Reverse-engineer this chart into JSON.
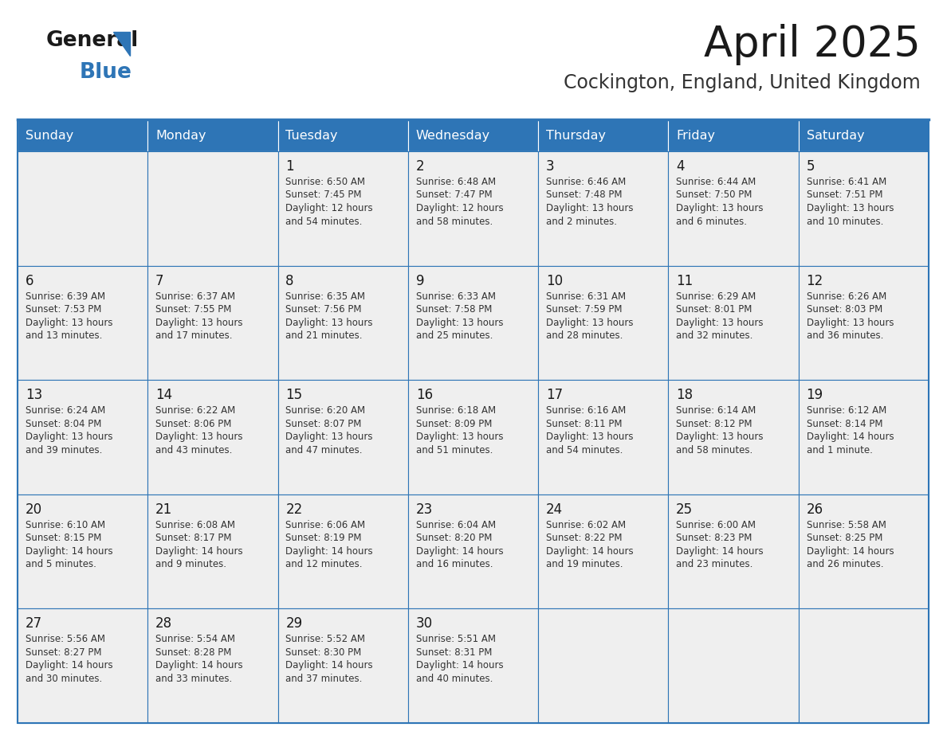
{
  "title": "April 2025",
  "subtitle": "Cockington, England, United Kingdom",
  "header_bg": "#2E75B6",
  "header_text": "#FFFFFF",
  "cell_bg": "#EFEFEF",
  "empty_cell_bg": "#F5F5F5",
  "border_color": "#2E75B6",
  "text_color": "#222222",
  "day_names": [
    "Sunday",
    "Monday",
    "Tuesday",
    "Wednesday",
    "Thursday",
    "Friday",
    "Saturday"
  ],
  "weeks": [
    [
      {
        "day": "",
        "info": ""
      },
      {
        "day": "",
        "info": ""
      },
      {
        "day": "1",
        "info": "Sunrise: 6:50 AM\nSunset: 7:45 PM\nDaylight: 12 hours\nand 54 minutes."
      },
      {
        "day": "2",
        "info": "Sunrise: 6:48 AM\nSunset: 7:47 PM\nDaylight: 12 hours\nand 58 minutes."
      },
      {
        "day": "3",
        "info": "Sunrise: 6:46 AM\nSunset: 7:48 PM\nDaylight: 13 hours\nand 2 minutes."
      },
      {
        "day": "4",
        "info": "Sunrise: 6:44 AM\nSunset: 7:50 PM\nDaylight: 13 hours\nand 6 minutes."
      },
      {
        "day": "5",
        "info": "Sunrise: 6:41 AM\nSunset: 7:51 PM\nDaylight: 13 hours\nand 10 minutes."
      }
    ],
    [
      {
        "day": "6",
        "info": "Sunrise: 6:39 AM\nSunset: 7:53 PM\nDaylight: 13 hours\nand 13 minutes."
      },
      {
        "day": "7",
        "info": "Sunrise: 6:37 AM\nSunset: 7:55 PM\nDaylight: 13 hours\nand 17 minutes."
      },
      {
        "day": "8",
        "info": "Sunrise: 6:35 AM\nSunset: 7:56 PM\nDaylight: 13 hours\nand 21 minutes."
      },
      {
        "day": "9",
        "info": "Sunrise: 6:33 AM\nSunset: 7:58 PM\nDaylight: 13 hours\nand 25 minutes."
      },
      {
        "day": "10",
        "info": "Sunrise: 6:31 AM\nSunset: 7:59 PM\nDaylight: 13 hours\nand 28 minutes."
      },
      {
        "day": "11",
        "info": "Sunrise: 6:29 AM\nSunset: 8:01 PM\nDaylight: 13 hours\nand 32 minutes."
      },
      {
        "day": "12",
        "info": "Sunrise: 6:26 AM\nSunset: 8:03 PM\nDaylight: 13 hours\nand 36 minutes."
      }
    ],
    [
      {
        "day": "13",
        "info": "Sunrise: 6:24 AM\nSunset: 8:04 PM\nDaylight: 13 hours\nand 39 minutes."
      },
      {
        "day": "14",
        "info": "Sunrise: 6:22 AM\nSunset: 8:06 PM\nDaylight: 13 hours\nand 43 minutes."
      },
      {
        "day": "15",
        "info": "Sunrise: 6:20 AM\nSunset: 8:07 PM\nDaylight: 13 hours\nand 47 minutes."
      },
      {
        "day": "16",
        "info": "Sunrise: 6:18 AM\nSunset: 8:09 PM\nDaylight: 13 hours\nand 51 minutes."
      },
      {
        "day": "17",
        "info": "Sunrise: 6:16 AM\nSunset: 8:11 PM\nDaylight: 13 hours\nand 54 minutes."
      },
      {
        "day": "18",
        "info": "Sunrise: 6:14 AM\nSunset: 8:12 PM\nDaylight: 13 hours\nand 58 minutes."
      },
      {
        "day": "19",
        "info": "Sunrise: 6:12 AM\nSunset: 8:14 PM\nDaylight: 14 hours\nand 1 minute."
      }
    ],
    [
      {
        "day": "20",
        "info": "Sunrise: 6:10 AM\nSunset: 8:15 PM\nDaylight: 14 hours\nand 5 minutes."
      },
      {
        "day": "21",
        "info": "Sunrise: 6:08 AM\nSunset: 8:17 PM\nDaylight: 14 hours\nand 9 minutes."
      },
      {
        "day": "22",
        "info": "Sunrise: 6:06 AM\nSunset: 8:19 PM\nDaylight: 14 hours\nand 12 minutes."
      },
      {
        "day": "23",
        "info": "Sunrise: 6:04 AM\nSunset: 8:20 PM\nDaylight: 14 hours\nand 16 minutes."
      },
      {
        "day": "24",
        "info": "Sunrise: 6:02 AM\nSunset: 8:22 PM\nDaylight: 14 hours\nand 19 minutes."
      },
      {
        "day": "25",
        "info": "Sunrise: 6:00 AM\nSunset: 8:23 PM\nDaylight: 14 hours\nand 23 minutes."
      },
      {
        "day": "26",
        "info": "Sunrise: 5:58 AM\nSunset: 8:25 PM\nDaylight: 14 hours\nand 26 minutes."
      }
    ],
    [
      {
        "day": "27",
        "info": "Sunrise: 5:56 AM\nSunset: 8:27 PM\nDaylight: 14 hours\nand 30 minutes."
      },
      {
        "day": "28",
        "info": "Sunrise: 5:54 AM\nSunset: 8:28 PM\nDaylight: 14 hours\nand 33 minutes."
      },
      {
        "day": "29",
        "info": "Sunrise: 5:52 AM\nSunset: 8:30 PM\nDaylight: 14 hours\nand 37 minutes."
      },
      {
        "day": "30",
        "info": "Sunrise: 5:51 AM\nSunset: 8:31 PM\nDaylight: 14 hours\nand 40 minutes."
      },
      {
        "day": "",
        "info": ""
      },
      {
        "day": "",
        "info": ""
      },
      {
        "day": "",
        "info": ""
      }
    ]
  ]
}
